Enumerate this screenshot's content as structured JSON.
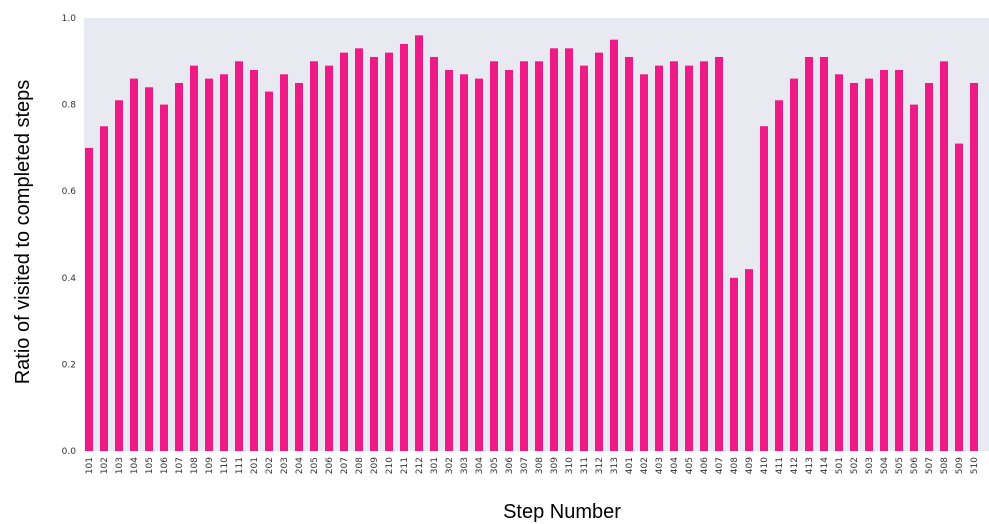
{
  "chart_data": {
    "type": "bar",
    "xlabel": "Step Number",
    "ylabel": "Ratio of visited to completed steps",
    "ylim": [
      0,
      1.0
    ],
    "yticks": [
      "0.0",
      "0.2",
      "0.4",
      "0.6",
      "0.8",
      "1.0"
    ],
    "grid": false,
    "bar_color": "#ee1b86",
    "plot_background": "#e9e9f1",
    "categories": [
      "101",
      "102",
      "103",
      "104",
      "105",
      "106",
      "107",
      "108",
      "109",
      "110",
      "111",
      "201",
      "202",
      "203",
      "204",
      "205",
      "206",
      "207",
      "208",
      "209",
      "210",
      "211",
      "212",
      "301",
      "302",
      "303",
      "304",
      "305",
      "306",
      "307",
      "308",
      "309",
      "310",
      "311",
      "312",
      "313",
      "401",
      "402",
      "403",
      "404",
      "405",
      "406",
      "407",
      "408",
      "409",
      "410",
      "411",
      "412",
      "413",
      "414",
      "501",
      "502",
      "503",
      "504",
      "505",
      "506",
      "507",
      "508",
      "509",
      "510"
    ],
    "values": [
      0.7,
      0.75,
      0.81,
      0.86,
      0.84,
      0.8,
      0.85,
      0.89,
      0.86,
      0.87,
      0.9,
      0.88,
      0.83,
      0.87,
      0.85,
      0.9,
      0.89,
      0.92,
      0.93,
      0.91,
      0.92,
      0.94,
      0.96,
      0.91,
      0.88,
      0.87,
      0.86,
      0.9,
      0.88,
      0.9,
      0.9,
      0.93,
      0.93,
      0.89,
      0.92,
      0.95,
      0.91,
      0.87,
      0.89,
      0.9,
      0.89,
      0.9,
      0.91,
      0.4,
      0.42,
      0.75,
      0.81,
      0.86,
      0.91,
      0.91,
      0.87,
      0.85,
      0.86,
      0.88,
      0.88,
      0.8,
      0.85,
      0.9,
      0.71,
      0.85
    ]
  }
}
